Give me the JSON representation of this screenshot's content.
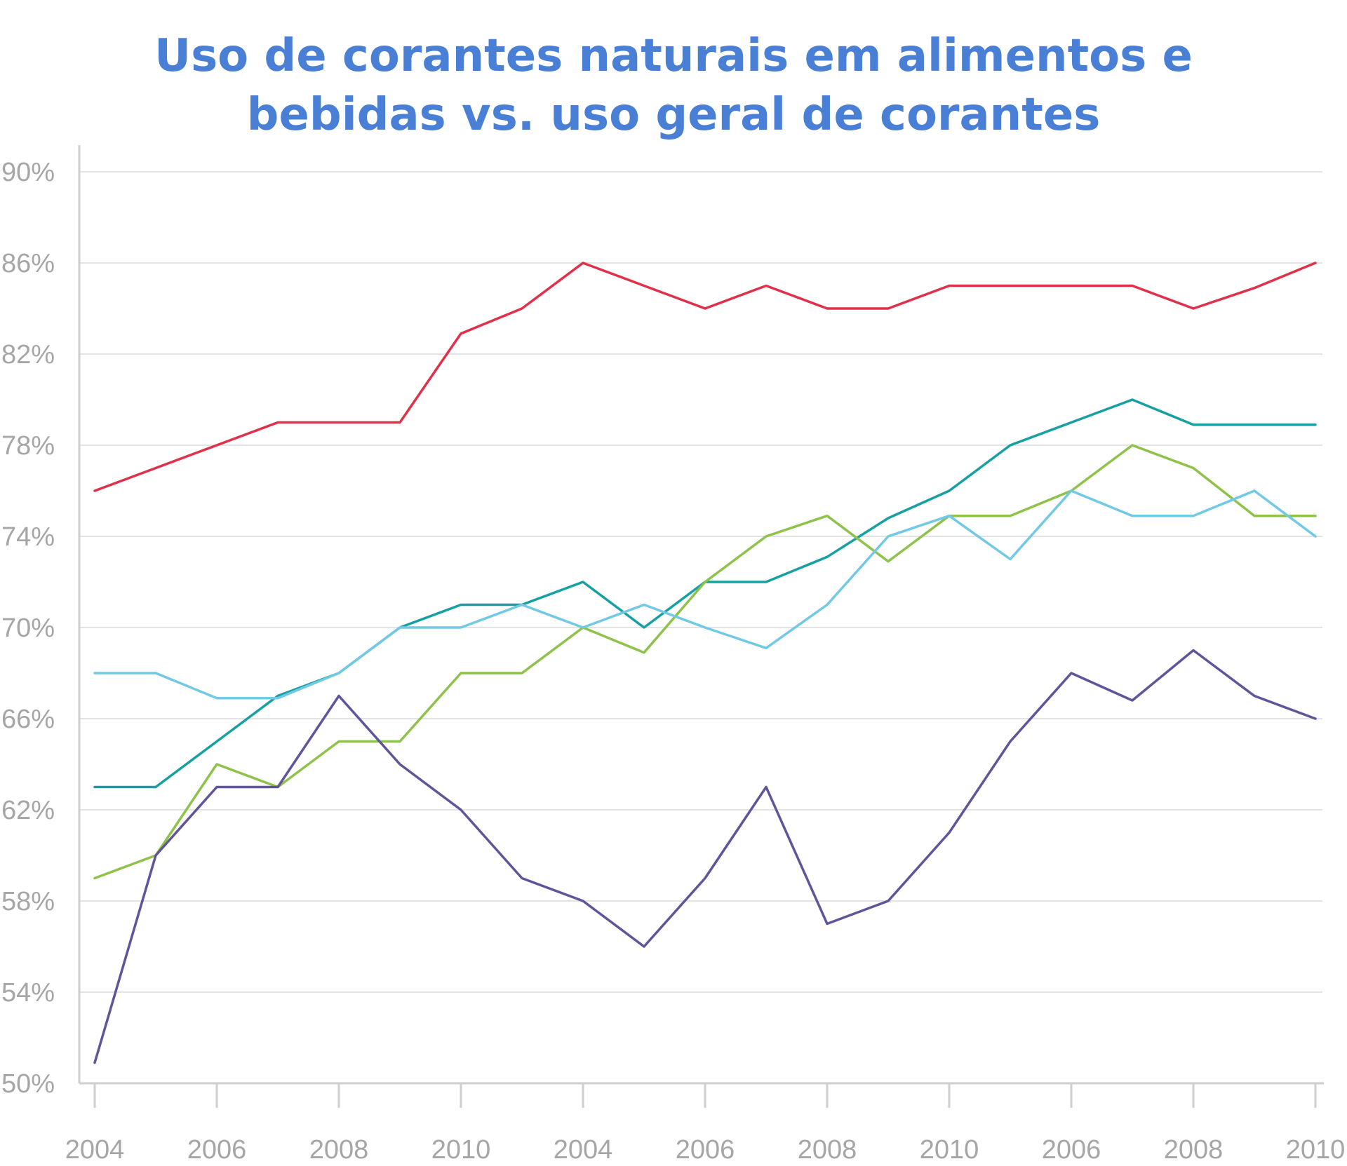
{
  "chart_data": {
    "type": "line",
    "title_lines": [
      "Uso de corantes naturais em alimentos e",
      "bebidas vs. uso geral de corantes"
    ],
    "xlabel": "",
    "ylabel": "",
    "x_tick_labels": [
      "2004",
      "2006",
      "2008",
      "2010",
      "2004",
      "2006",
      "2008",
      "2010",
      "2006",
      "2008",
      "2010"
    ],
    "y_tick_labels": [
      "90%",
      "86%",
      "82%",
      "78%",
      "74%",
      "70%",
      "66%",
      "62%",
      "58%",
      "54%",
      "50%"
    ],
    "ylim": [
      50,
      90
    ],
    "grid": true,
    "legend": "none",
    "series": [
      {
        "color": "#e0304a",
        "values": [
          76,
          77,
          78,
          79,
          79,
          79,
          82.9,
          84,
          86,
          85,
          84,
          85,
          84,
          84,
          85,
          85,
          85,
          85,
          84,
          84.9,
          86
        ]
      },
      {
        "color": "#17a0a3",
        "values": [
          63,
          63,
          65,
          67,
          68,
          70,
          71,
          71,
          72,
          70,
          72,
          72,
          73.1,
          74.8,
          76,
          78,
          79,
          80,
          78.9,
          78.9,
          78.9
        ]
      },
      {
        "color": "#8fc24a",
        "values": [
          59,
          60,
          64,
          63,
          65,
          65,
          68,
          68,
          70,
          68.9,
          72,
          74,
          74.9,
          72.9,
          74.9,
          74.9,
          76,
          78,
          77,
          74.9,
          74.9
        ]
      },
      {
        "color": "#72c9e6",
        "values": [
          68,
          68,
          66.9,
          66.9,
          68,
          70,
          70,
          71,
          70,
          71,
          70,
          69.1,
          71,
          74,
          74.9,
          73,
          76,
          74.9,
          74.9,
          76,
          74
        ]
      },
      {
        "color": "#5f559a",
        "values": [
          50.9,
          60,
          63,
          63,
          67,
          64,
          62,
          59,
          58,
          56,
          59,
          63,
          57,
          58,
          61,
          65,
          68,
          66.8,
          69,
          67,
          66
        ]
      }
    ]
  }
}
